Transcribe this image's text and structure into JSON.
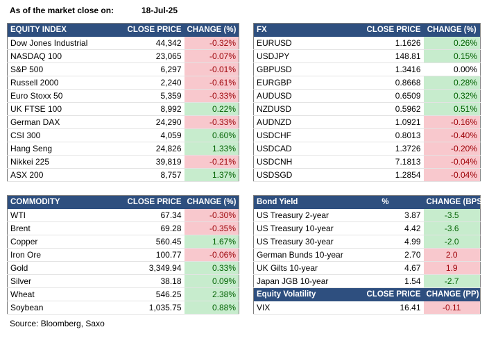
{
  "header": {
    "title": "As of the market close on:",
    "date": "18-Jul-25"
  },
  "equity": {
    "headers": [
      "EQUITY INDEX",
      "CLOSE PRICE",
      "CHANGE (%)"
    ],
    "rows": [
      [
        "Dow Jones Industrial",
        "44,342",
        "-0.32%",
        "neg"
      ],
      [
        "NASDAQ 100",
        "23,065",
        "-0.07%",
        "neg"
      ],
      [
        "S&P 500",
        "6,297",
        "-0.01%",
        "neg"
      ],
      [
        "Russell 2000",
        "2,240",
        "-0.61%",
        "neg"
      ],
      [
        "Euro Stoxx 50",
        "5,359",
        "-0.33%",
        "neg"
      ],
      [
        "UK FTSE 100",
        "8,992",
        "0.22%",
        "pos"
      ],
      [
        "German DAX",
        "24,290",
        "-0.33%",
        "neg"
      ],
      [
        "CSI 300",
        "4,059",
        "0.60%",
        "pos"
      ],
      [
        "Hang Seng",
        "24,826",
        "1.33%",
        "pos"
      ],
      [
        "Nikkei 225",
        "39,819",
        "-0.21%",
        "neg"
      ],
      [
        "ASX 200",
        "8,757",
        "1.37%",
        "pos"
      ]
    ]
  },
  "fx": {
    "headers": [
      "FX",
      "CLOSE PRICE",
      "CHANGE (%)"
    ],
    "rows": [
      [
        "EURUSD",
        "1.1626",
        "0.26%",
        "pos"
      ],
      [
        "USDJPY",
        "148.81",
        "0.15%",
        "pos"
      ],
      [
        "GBPUSD",
        "1.3416",
        "0.00%",
        "neu"
      ],
      [
        "EURGBP",
        "0.8668",
        "0.28%",
        "pos"
      ],
      [
        "AUDUSD",
        "0.6509",
        "0.32%",
        "pos"
      ],
      [
        "NZDUSD",
        "0.5962",
        "0.51%",
        "pos"
      ],
      [
        "AUDNZD",
        "1.0921",
        "-0.16%",
        "neg"
      ],
      [
        "USDCHF",
        "0.8013",
        "-0.40%",
        "neg"
      ],
      [
        "USDCAD",
        "1.3726",
        "-0.20%",
        "neg"
      ],
      [
        "USDCNH",
        "7.1813",
        "-0.04%",
        "neg"
      ],
      [
        "USDSGD",
        "1.2854",
        "-0.04%",
        "neg"
      ]
    ]
  },
  "commodity": {
    "headers": [
      "COMMODITY",
      "CLOSE PRICE",
      "CHANGE (%)"
    ],
    "rows": [
      [
        "WTI",
        "67.34",
        "-0.30%",
        "neg"
      ],
      [
        "Brent",
        "69.28",
        "-0.35%",
        "neg"
      ],
      [
        "Copper",
        "560.45",
        "1.67%",
        "pos"
      ],
      [
        "Iron Ore",
        "100.77",
        "-0.06%",
        "neg"
      ],
      [
        "Gold",
        "3,349.94",
        "0.33%",
        "pos"
      ],
      [
        "Silver",
        "38.18",
        "0.09%",
        "pos"
      ],
      [
        "Wheat",
        "546.25",
        "2.38%",
        "pos"
      ],
      [
        "Soybean",
        "1,035.75",
        "0.88%",
        "pos"
      ]
    ]
  },
  "bonds": {
    "headers": [
      "Bond Yield",
      "%",
      "CHANGE (BPS)"
    ],
    "rows": [
      [
        "US Treasury 2-year",
        "3.87",
        "-3.5",
        "pos"
      ],
      [
        "US Treasury 10-year",
        "4.42",
        "-3.6",
        "pos"
      ],
      [
        "US Treasury 30-year",
        "4.99",
        "-2.0",
        "pos"
      ],
      [
        "German Bunds 10-year",
        "2.70",
        "2.0",
        "neg"
      ],
      [
        "UK Gilts 10-year",
        "4.67",
        "1.9",
        "neg"
      ],
      [
        "Japan JGB 10-year",
        "1.54",
        "-2.7",
        "pos"
      ]
    ]
  },
  "volatility": {
    "headers": [
      "Equity Volatility",
      "CLOSE PRICE",
      "CHANGE (PP)"
    ],
    "rows": [
      [
        "VIX",
        "16.41",
        "-0.11",
        "neg"
      ]
    ]
  },
  "colors": {
    "header_bg": "#2e4f7f",
    "negative_bg": "#f8c8cd",
    "positive_bg": "#c7eccd"
  },
  "footer": {
    "source": "Source: Bloomberg, Saxo"
  }
}
